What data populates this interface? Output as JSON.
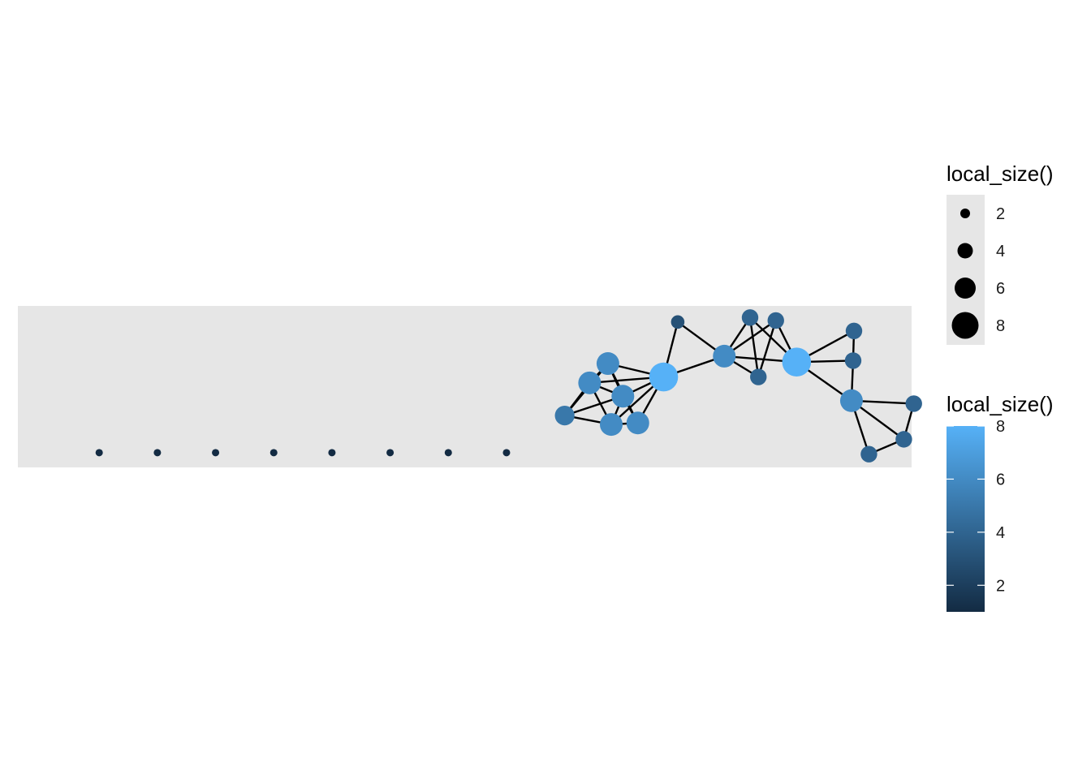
{
  "chart_data": {
    "type": "network",
    "panel_background": "#e6e6e6",
    "edge_color": "#000000",
    "color_scale": {
      "low": "#132b43",
      "high": "#56b1f7",
      "min": 1,
      "max": 8
    },
    "nodes": [
      {
        "id": 1,
        "x": 0.05,
        "y": 0.05,
        "local_size": 1
      },
      {
        "id": 2,
        "x": 0.12,
        "y": 0.05,
        "local_size": 1
      },
      {
        "id": 3,
        "x": 0.19,
        "y": 0.05,
        "local_size": 1
      },
      {
        "id": 4,
        "x": 0.26,
        "y": 0.05,
        "local_size": 1
      },
      {
        "id": 5,
        "x": 0.33,
        "y": 0.05,
        "local_size": 1
      },
      {
        "id": 6,
        "x": 0.4,
        "y": 0.05,
        "local_size": 1
      },
      {
        "id": 7,
        "x": 0.47,
        "y": 0.05,
        "local_size": 1
      },
      {
        "id": 8,
        "x": 0.54,
        "y": 0.05,
        "local_size": 1
      },
      {
        "id": 9,
        "x": 0.61,
        "y": 0.3,
        "local_size": 5
      },
      {
        "id": 10,
        "x": 0.64,
        "y": 0.52,
        "local_size": 6
      },
      {
        "id": 11,
        "x": 0.662,
        "y": 0.65,
        "local_size": 6
      },
      {
        "id": 12,
        "x": 0.68,
        "y": 0.43,
        "local_size": 6
      },
      {
        "id": 13,
        "x": 0.666,
        "y": 0.24,
        "local_size": 6
      },
      {
        "id": 14,
        "x": 0.698,
        "y": 0.25,
        "local_size": 6
      },
      {
        "id": 15,
        "x": 0.729,
        "y": 0.56,
        "local_size": 8
      },
      {
        "id": 16,
        "x": 0.746,
        "y": 0.93,
        "local_size": 3
      },
      {
        "id": 17,
        "x": 0.802,
        "y": 0.7,
        "local_size": 6
      },
      {
        "id": 18,
        "x": 0.833,
        "y": 0.96,
        "local_size": 4
      },
      {
        "id": 19,
        "x": 0.864,
        "y": 0.94,
        "local_size": 4
      },
      {
        "id": 20,
        "x": 0.843,
        "y": 0.56,
        "local_size": 4
      },
      {
        "id": 21,
        "x": 0.889,
        "y": 0.66,
        "local_size": 8
      },
      {
        "id": 22,
        "x": 0.958,
        "y": 0.87,
        "local_size": 4
      },
      {
        "id": 23,
        "x": 0.957,
        "y": 0.67,
        "local_size": 4
      },
      {
        "id": 24,
        "x": 0.955,
        "y": 0.4,
        "local_size": 6
      },
      {
        "id": 25,
        "x": 1.03,
        "y": 0.38,
        "local_size": 4
      },
      {
        "id": 26,
        "x": 1.018,
        "y": 0.14,
        "local_size": 4
      },
      {
        "id": 27,
        "x": 0.976,
        "y": 0.04,
        "local_size": 4
      }
    ],
    "edges": [
      [
        9,
        10
      ],
      [
        9,
        11
      ],
      [
        9,
        12
      ],
      [
        9,
        13
      ],
      [
        10,
        12
      ],
      [
        10,
        13
      ],
      [
        10,
        11
      ],
      [
        11,
        12
      ],
      [
        11,
        14
      ],
      [
        12,
        14
      ],
      [
        12,
        13
      ],
      [
        13,
        14
      ],
      [
        15,
        10
      ],
      [
        15,
        13
      ],
      [
        15,
        14
      ],
      [
        15,
        11
      ],
      [
        15,
        12
      ],
      [
        15,
        16
      ],
      [
        15,
        17
      ],
      [
        16,
        17
      ],
      [
        17,
        18
      ],
      [
        17,
        19
      ],
      [
        17,
        20
      ],
      [
        17,
        21
      ],
      [
        18,
        20
      ],
      [
        18,
        21
      ],
      [
        19,
        20
      ],
      [
        19,
        21
      ],
      [
        21,
        22
      ],
      [
        21,
        23
      ],
      [
        21,
        24
      ],
      [
        22,
        23
      ],
      [
        23,
        24
      ],
      [
        24,
        25
      ],
      [
        24,
        26
      ],
      [
        24,
        27
      ],
      [
        25,
        26
      ],
      [
        26,
        27
      ]
    ],
    "legend_size": {
      "title": "local_size()",
      "breaks": [
        2,
        4,
        6,
        8
      ],
      "labels": [
        "2",
        "4",
        "6",
        "8"
      ]
    },
    "legend_color": {
      "title": "local_size()",
      "breaks": [
        2,
        4,
        6,
        8
      ],
      "labels": [
        "2",
        "4",
        "6",
        "8"
      ]
    }
  }
}
